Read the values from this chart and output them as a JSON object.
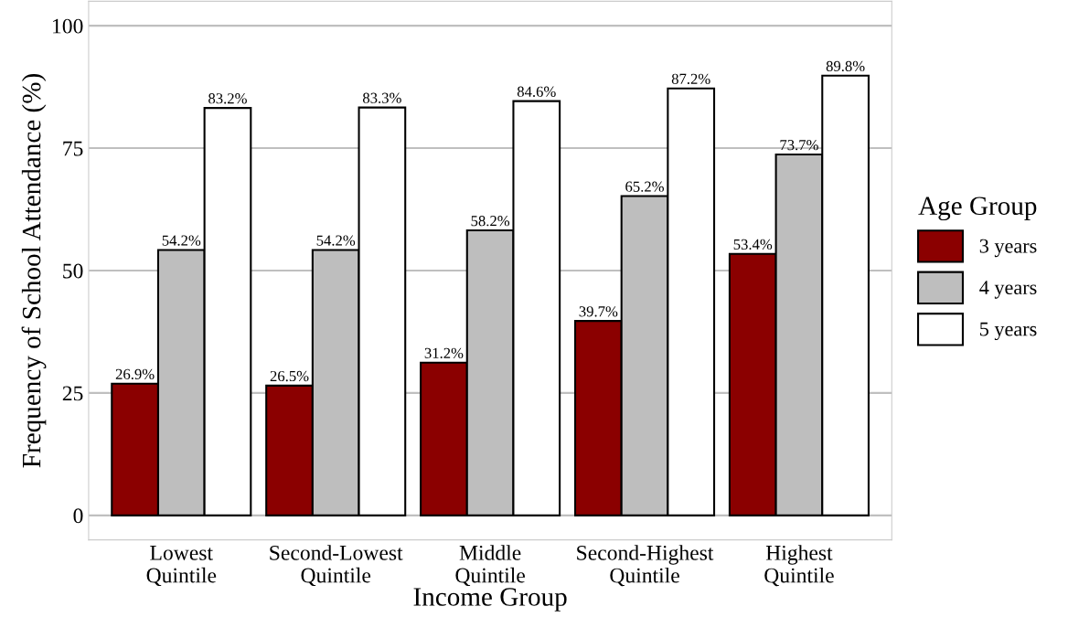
{
  "chart_data": {
    "type": "bar",
    "xlabel": "Income Group",
    "ylabel": "Frequency of School Attendance (%)",
    "legend_title": "Age Group",
    "categories": [
      "Lowest\nQuintile",
      "Second-Lowest\nQuintile",
      "Middle\nQuintile",
      "Second-Highest\nQuintile",
      "Highest\nQuintile"
    ],
    "series": [
      {
        "name": "3 years",
        "color": "#8b0000",
        "values": [
          26.9,
          26.5,
          31.2,
          39.7,
          53.4
        ],
        "value_labels": [
          "26.9%",
          "26.5%",
          "31.2%",
          "39.7%",
          "53.4%"
        ]
      },
      {
        "name": "4 years",
        "color": "#bebebe",
        "values": [
          54.2,
          54.2,
          58.2,
          65.2,
          73.7
        ],
        "value_labels": [
          "54.2%",
          "54.2%",
          "58.2%",
          "65.2%",
          "73.7%"
        ]
      },
      {
        "name": "5 years",
        "color": "#ffffff",
        "values": [
          83.2,
          83.3,
          84.6,
          87.2,
          89.8
        ],
        "value_labels": [
          "83.2%",
          "83.3%",
          "84.6%",
          "87.2%",
          "89.8%"
        ]
      }
    ],
    "ylim": [
      -5,
      105
    ],
    "yticks": [
      0,
      25,
      50,
      75,
      100
    ],
    "grid": "y",
    "legend": "right"
  }
}
